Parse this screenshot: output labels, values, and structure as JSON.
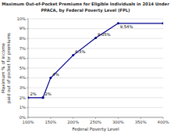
{
  "chart_data": {
    "type": "line",
    "title": "Maximum Out-of-Pocket Premiums for Eligible Individuals in 2014 Under\nPPACA, by Federal Poverty Level (FPL)",
    "x_label": "Federal Poverty Level",
    "y_label": "Maximum % of income\npaid out of pocket for premiums",
    "x": [
      100,
      133,
      133,
      150,
      200,
      250,
      300,
      400
    ],
    "values": [
      2.0,
      2.0,
      2.0,
      4.0,
      6.3,
      8.05,
      9.54,
      9.54
    ],
    "color": "#00008B",
    "marker": "circle",
    "annotations": [
      {
        "text": "2%",
        "x": 100,
        "y": 2.0
      },
      {
        "text": "2%",
        "x": 133,
        "y": 2.0
      },
      {
        "text": "4%",
        "x": 150,
        "y": 4.0
      },
      {
        "text": "6.3%",
        "x": 200,
        "y": 6.3
      },
      {
        "text": "8.05%",
        "x": 250,
        "y": 8.05
      },
      {
        "text": "9.54%",
        "x": 300,
        "y": 9.54
      }
    ],
    "xlim": [
      100,
      400
    ],
    "ylim": [
      0,
      10
    ],
    "xticks": [
      {
        "value": 100,
        "label": "100%"
      },
      {
        "value": 150,
        "label": "150%"
      },
      {
        "value": 200,
        "label": "200%"
      },
      {
        "value": 250,
        "label": "250%"
      },
      {
        "value": 300,
        "label": "300%"
      },
      {
        "value": 350,
        "label": "350%"
      },
      {
        "value": 400,
        "label": "400%"
      }
    ],
    "yticks": [
      {
        "value": 0,
        "label": "0%"
      },
      {
        "value": 1,
        "label": "1%"
      },
      {
        "value": 2,
        "label": "2%"
      },
      {
        "value": 3,
        "label": "3%"
      },
      {
        "value": 4,
        "label": "4%"
      },
      {
        "value": 5,
        "label": "5%"
      },
      {
        "value": 6,
        "label": "6%"
      },
      {
        "value": 7,
        "label": "7%"
      },
      {
        "value": 8,
        "label": "8%"
      },
      {
        "value": 9,
        "label": "9%"
      },
      {
        "value": 10,
        "label": "10%"
      }
    ],
    "grid": "y"
  }
}
